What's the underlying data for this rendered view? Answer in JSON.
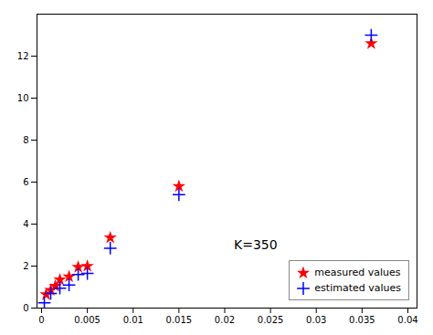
{
  "chart_data": {
    "type": "scatter",
    "series": [
      {
        "name": "measured values",
        "color": "#ff0000",
        "marker": "star",
        "x": [
          0.0005,
          0.001,
          0.0015,
          0.002,
          0.003,
          0.004,
          0.005,
          0.0075,
          0.015,
          0.036
        ],
        "values": [
          0.65,
          0.85,
          1.05,
          1.35,
          1.5,
          1.95,
          2.0,
          3.35,
          5.8,
          12.6
        ]
      },
      {
        "name": "estimated values",
        "color": "#0000ff",
        "marker": "plus",
        "x": [
          0.0003,
          0.001,
          0.002,
          0.003,
          0.004,
          0.005,
          0.0075,
          0.015,
          0.036
        ],
        "values": [
          0.25,
          0.7,
          0.95,
          1.1,
          1.6,
          1.65,
          2.85,
          5.4,
          13.0
        ]
      }
    ],
    "annotations": [
      {
        "text": "K=350",
        "x": 0.021,
        "y": 2.8
      }
    ],
    "xlim": [
      -0.0005,
      0.041
    ],
    "ylim": [
      0,
      14
    ],
    "xticks": [
      0,
      0.005,
      0.01,
      0.015,
      0.02,
      0.025,
      0.03,
      0.035,
      0.04
    ],
    "yticks": [
      0,
      2,
      4,
      6,
      8,
      10,
      12
    ],
    "legend": "lower right",
    "grid": false
  }
}
